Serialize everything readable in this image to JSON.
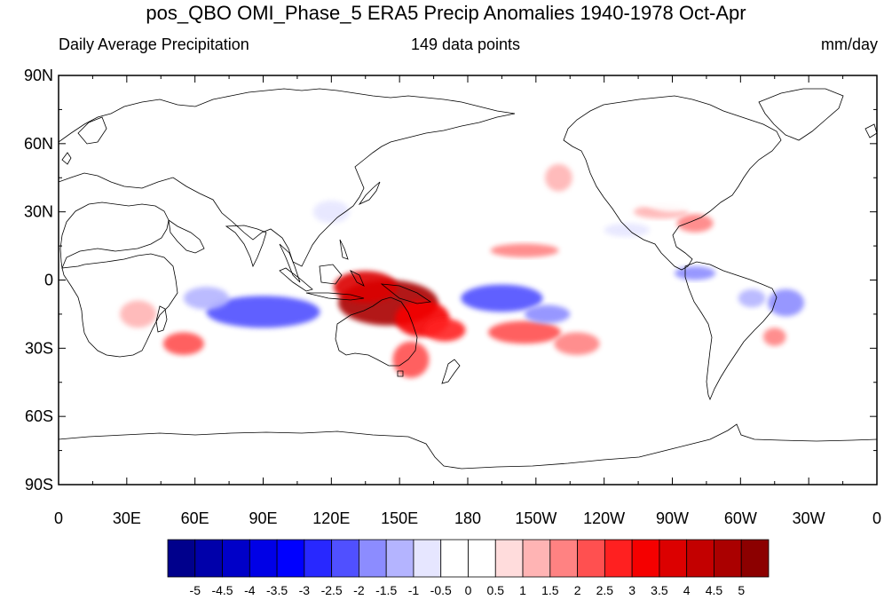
{
  "title": "pos_QBO OMI_Phase_5 ERA5 Precip Anomalies 1940-1978 Oct-Apr",
  "subtitle_left": "Daily Average Precipitation",
  "subtitle_center": "149 data points",
  "subtitle_right": "mm/day",
  "map": {
    "projection": "cylindrical-equidistant",
    "lon_range": [
      0,
      360
    ],
    "lat_range": [
      -90,
      90
    ],
    "lat_ticks": [
      {
        "value": 90,
        "label": "90N"
      },
      {
        "value": 60,
        "label": "60N"
      },
      {
        "value": 30,
        "label": "30N"
      },
      {
        "value": 0,
        "label": "0"
      },
      {
        "value": -30,
        "label": "30S"
      },
      {
        "value": -60,
        "label": "60S"
      },
      {
        "value": -90,
        "label": "90S"
      }
    ],
    "lon_ticks": [
      {
        "value": 0,
        "label": "0"
      },
      {
        "value": 30,
        "label": "30E"
      },
      {
        "value": 60,
        "label": "60E"
      },
      {
        "value": 90,
        "label": "90E"
      },
      {
        "value": 120,
        "label": "120E"
      },
      {
        "value": 150,
        "label": "150E"
      },
      {
        "value": 180,
        "label": "180"
      },
      {
        "value": 210,
        "label": "150W"
      },
      {
        "value": 240,
        "label": "120W"
      },
      {
        "value": 270,
        "label": "90W"
      },
      {
        "value": 300,
        "label": "60W"
      },
      {
        "value": 330,
        "label": "30W"
      },
      {
        "value": 360,
        "label": "0"
      }
    ],
    "anomaly_regions": [
      {
        "lon": 145,
        "lat": -10,
        "rlon": 22,
        "rlat": 10,
        "value": 4.5
      },
      {
        "lon": 135,
        "lat": -3,
        "rlon": 14,
        "rlat": 7,
        "value": 3.5
      },
      {
        "lon": 160,
        "lat": -17,
        "rlon": 12,
        "rlat": 8,
        "value": 3
      },
      {
        "lon": 170,
        "lat": -22,
        "rlon": 9,
        "rlat": 5,
        "value": 2.5
      },
      {
        "lon": 155,
        "lat": -35,
        "rlon": 8,
        "rlat": 8,
        "value": 2
      },
      {
        "lon": 205,
        "lat": -23,
        "rlon": 16,
        "rlat": 5,
        "value": 2
      },
      {
        "lon": 228,
        "lat": -28,
        "rlon": 10,
        "rlat": 5,
        "value": 1.5
      },
      {
        "lon": 205,
        "lat": 13,
        "rlon": 15,
        "rlat": 3,
        "value": 1.5
      },
      {
        "lon": 55,
        "lat": -28,
        "rlon": 9,
        "rlat": 5,
        "value": 2
      },
      {
        "lon": 35,
        "lat": -15,
        "rlon": 8,
        "rlat": 6,
        "value": 1
      },
      {
        "lon": 315,
        "lat": -25,
        "rlon": 5,
        "rlat": 4,
        "value": 1.5
      },
      {
        "lon": 280,
        "lat": 25,
        "rlon": 8,
        "rlat": 4,
        "value": 1.5
      },
      {
        "lon": 265,
        "lat": 30,
        "rlon": 12,
        "rlat": 3,
        "value": 1
      },
      {
        "lon": 220,
        "lat": 45,
        "rlon": 6,
        "rlat": 6,
        "value": 1
      },
      {
        "lon": 90,
        "lat": -14,
        "rlon": 25,
        "rlat": 7,
        "value": -2.5
      },
      {
        "lon": 65,
        "lat": -8,
        "rlon": 10,
        "rlat": 5,
        "value": -1.5
      },
      {
        "lon": 195,
        "lat": -8,
        "rlon": 18,
        "rlat": 6,
        "value": -2.5
      },
      {
        "lon": 215,
        "lat": -15,
        "rlon": 10,
        "rlat": 4,
        "value": -2
      },
      {
        "lon": 320,
        "lat": -10,
        "rlon": 8,
        "rlat": 6,
        "value": -2
      },
      {
        "lon": 280,
        "lat": 3,
        "rlon": 9,
        "rlat": 3,
        "value": -2
      },
      {
        "lon": 305,
        "lat": -8,
        "rlon": 6,
        "rlat": 4,
        "value": -1.5
      },
      {
        "lon": 120,
        "lat": 30,
        "rlon": 8,
        "rlat": 5,
        "value": -1
      },
      {
        "lon": 250,
        "lat": 22,
        "rlon": 10,
        "rlat": 3,
        "value": -1
      },
      {
        "lon": 270,
        "lat": 38,
        "rlon": 15,
        "rlat": 8,
        "value": -0.5
      },
      {
        "lon": 20,
        "lat": -40,
        "rlon": 20,
        "rlat": 4,
        "value": -0.5
      }
    ]
  },
  "colorbar": {
    "labels": [
      "-5",
      "-4.5",
      "-4",
      "-3.5",
      "-3",
      "-2.5",
      "-2",
      "-1.5",
      "-1",
      "-0.5",
      "0",
      "0.5",
      "1",
      "1.5",
      "2",
      "2.5",
      "3",
      "3.5",
      "4",
      "4.5",
      "5"
    ],
    "colors": [
      "#00008c",
      "#0000aa",
      "#0000c8",
      "#0000e6",
      "#0000ff",
      "#2828ff",
      "#5050ff",
      "#8c8cff",
      "#b4b4ff",
      "#e6e6ff",
      "#ffffff",
      "#ffffff",
      "#ffdcdc",
      "#ffb4b4",
      "#ff8282",
      "#ff5050",
      "#ff2020",
      "#f50000",
      "#dc0000",
      "#c30000",
      "#aa0000",
      "#8c0000"
    ]
  },
  "colors": {
    "coastline": "#000000",
    "frame": "#000000",
    "background": "#ffffff"
  }
}
